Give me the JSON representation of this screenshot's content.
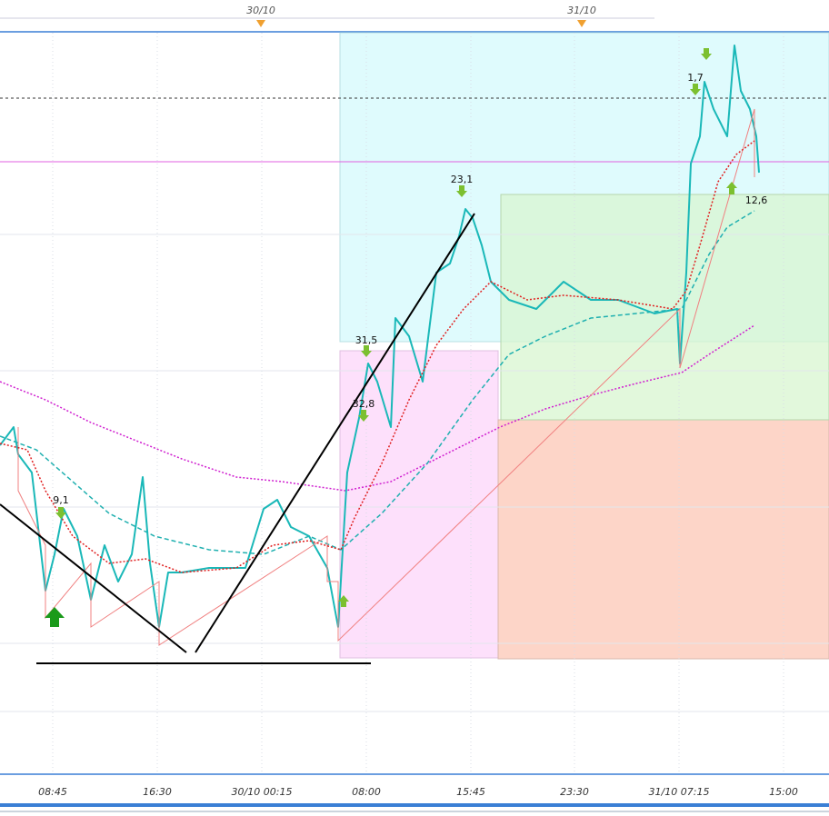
{
  "header": {
    "dates": [
      "30/10",
      "31/10"
    ]
  },
  "x_axis": {
    "labels": [
      "08:45",
      "16:30",
      "30/10 00:15",
      "08:00",
      "15:45",
      "23:30",
      "31/10 07:15",
      "15:00"
    ]
  },
  "annotations": [
    "9,1",
    "31,5",
    "32,8",
    "23,1",
    "1,7",
    "12,6"
  ]
}
